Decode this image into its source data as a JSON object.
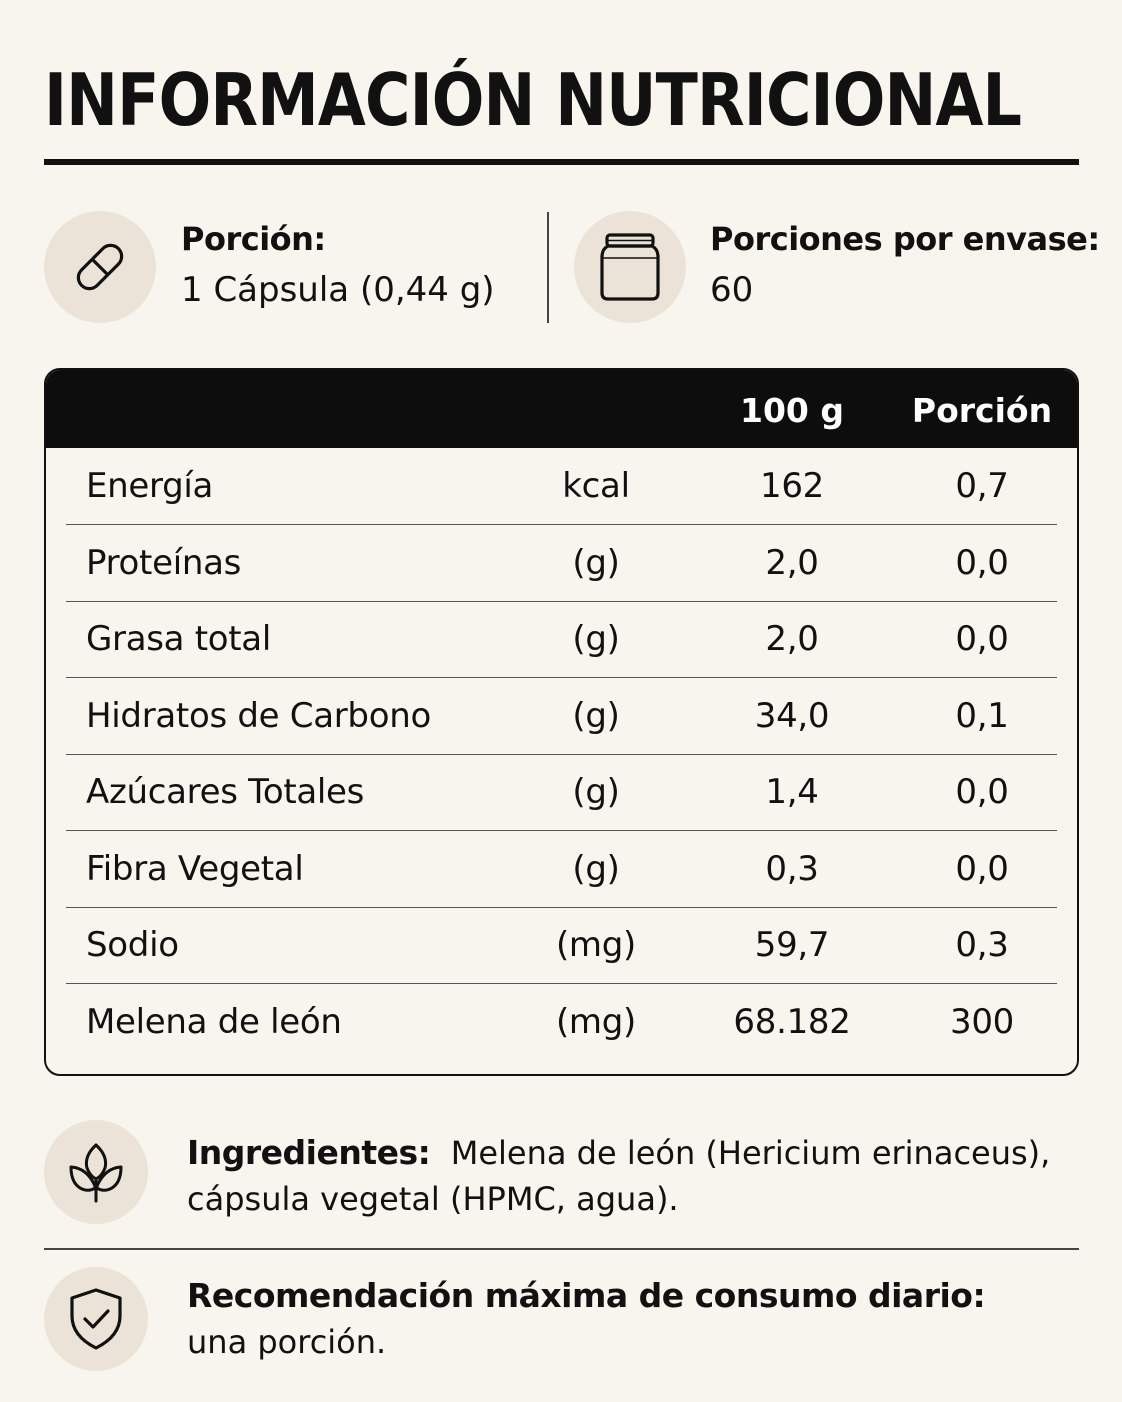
{
  "title": "INFORMACIÓN NUTRICIONAL",
  "serving": {
    "label": "Porción:",
    "value": "1 Cápsula (0,44 g)",
    "icon": "capsule-icon"
  },
  "servings_per_container": {
    "label": "Porciones por envase:",
    "value": "60",
    "icon": "jar-icon"
  },
  "table": {
    "headers": {
      "per_100g": "100 g",
      "per_serving": "Porción"
    },
    "rows": [
      {
        "name": "Energía",
        "unit": "kcal",
        "per_100g": "162",
        "per_serving": "0,7"
      },
      {
        "name": "Proteínas",
        "unit": "(g)",
        "per_100g": "2,0",
        "per_serving": "0,0"
      },
      {
        "name": "Grasa total",
        "unit": "(g)",
        "per_100g": "2,0",
        "per_serving": "0,0"
      },
      {
        "name": "Hidratos de Carbono",
        "unit": "(g)",
        "per_100g": "34,0",
        "per_serving": "0,1"
      },
      {
        "name": "Azúcares Totales",
        "unit": "(g)",
        "per_100g": "1,4",
        "per_serving": "0,0"
      },
      {
        "name": "Fibra Vegetal",
        "unit": "(g)",
        "per_100g": "0,3",
        "per_serving": "0,0"
      },
      {
        "name": "Sodio",
        "unit": "(mg)",
        "per_100g": "59,7",
        "per_serving": "0,3"
      },
      {
        "name": "Melena de león",
        "unit": "(mg)",
        "per_100g": "68.182",
        "per_serving": "300"
      }
    ]
  },
  "ingredients": {
    "label": "Ingredientes:",
    "text_line1": "Melena de león (Hericium erinaceus),",
    "text_line2": "cápsula vegetal (HPMC, agua).",
    "icon": "plant-leaves-icon"
  },
  "recommendation": {
    "label": "Recomendación máxima de consumo diario:",
    "text": "una porción.",
    "icon": "shield-check-icon"
  },
  "colors": {
    "background": "#f8f5ef",
    "icon_circle": "#ebe3d7",
    "header_bg": "#0d0d0d",
    "text": "#111111"
  }
}
